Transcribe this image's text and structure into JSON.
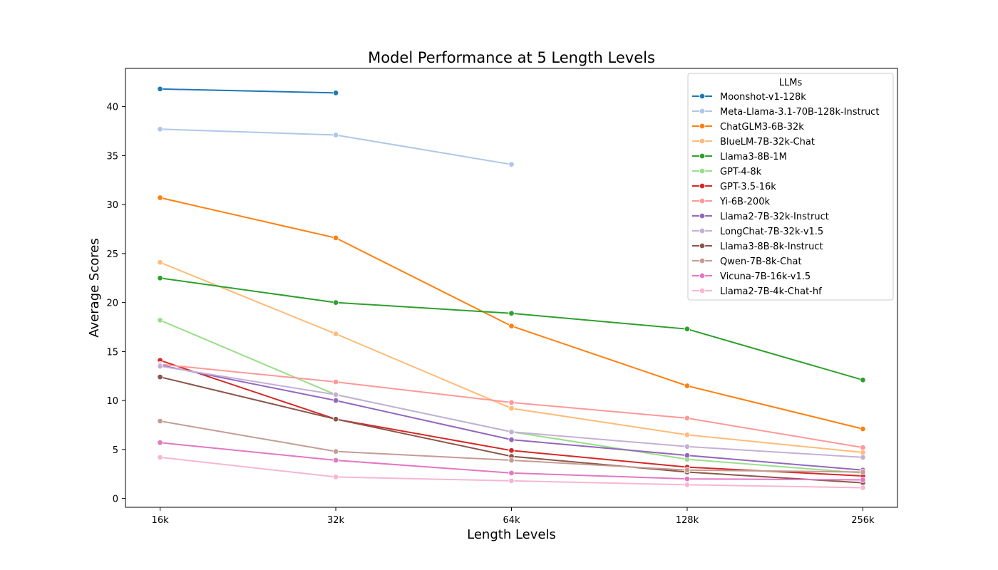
{
  "chart_data": {
    "type": "line",
    "title": "Model Performance at 5 Length Levels",
    "xlabel": "Length Levels",
    "ylabel": "Average Scores",
    "categories": [
      "16k",
      "32k",
      "64k",
      "128k",
      "256k"
    ],
    "ylim": [
      -0.9,
      43.9
    ],
    "yticks": [
      0,
      5,
      10,
      15,
      20,
      25,
      30,
      35,
      40
    ],
    "grid": false,
    "legend": {
      "title": "LLMs",
      "position": "top-right"
    },
    "series": [
      {
        "name": "Moonshot-v1-128k",
        "color": "#1f77b4",
        "values": [
          41.8,
          41.4,
          null,
          null,
          null
        ]
      },
      {
        "name": "Meta-Llama-3.1-70B-128k-Instruct",
        "color": "#aec7e8",
        "values": [
          37.7,
          37.1,
          34.1,
          null,
          null
        ]
      },
      {
        "name": "ChatGLM3-6B-32k",
        "color": "#ff7f0e",
        "values": [
          30.7,
          26.6,
          17.6,
          11.5,
          7.1
        ]
      },
      {
        "name": "BlueLM-7B-32k-Chat",
        "color": "#ffbb78",
        "values": [
          24.1,
          16.8,
          9.2,
          6.5,
          4.7
        ]
      },
      {
        "name": "Llama3-8B-1M",
        "color": "#2ca02c",
        "values": [
          22.5,
          20.0,
          18.9,
          17.3,
          12.1
        ]
      },
      {
        "name": "GPT-4-8k",
        "color": "#98df8a",
        "values": [
          18.2,
          10.6,
          6.8,
          4.0,
          2.6
        ]
      },
      {
        "name": "GPT-3.5-16k",
        "color": "#d62728",
        "values": [
          14.1,
          8.1,
          4.9,
          3.2,
          2.3
        ]
      },
      {
        "name": "Yi-6B-200k",
        "color": "#ff9896",
        "values": [
          13.7,
          11.9,
          9.8,
          8.2,
          5.2
        ]
      },
      {
        "name": "Llama2-7B-32k-Instruct",
        "color": "#9467bd",
        "values": [
          13.6,
          10.0,
          6.0,
          4.4,
          2.9
        ]
      },
      {
        "name": "LongChat-7B-32k-v1.5",
        "color": "#c5b0d5",
        "values": [
          13.5,
          10.6,
          6.8,
          5.3,
          4.2
        ]
      },
      {
        "name": "Llama3-8B-8k-Instruct",
        "color": "#8c564b",
        "values": [
          12.4,
          8.1,
          4.3,
          2.7,
          1.6
        ]
      },
      {
        "name": "Qwen-7B-8k-Chat",
        "color": "#c49c94",
        "values": [
          7.9,
          4.8,
          3.9,
          2.9,
          2.7
        ]
      },
      {
        "name": "Vicuna-7B-16k-v1.5",
        "color": "#e377c2",
        "values": [
          5.7,
          3.9,
          2.6,
          2.0,
          1.9
        ]
      },
      {
        "name": "Llama2-7B-4k-Chat-hf",
        "color": "#f7b6d2",
        "values": [
          4.2,
          2.2,
          1.8,
          1.4,
          1.1
        ]
      }
    ]
  }
}
